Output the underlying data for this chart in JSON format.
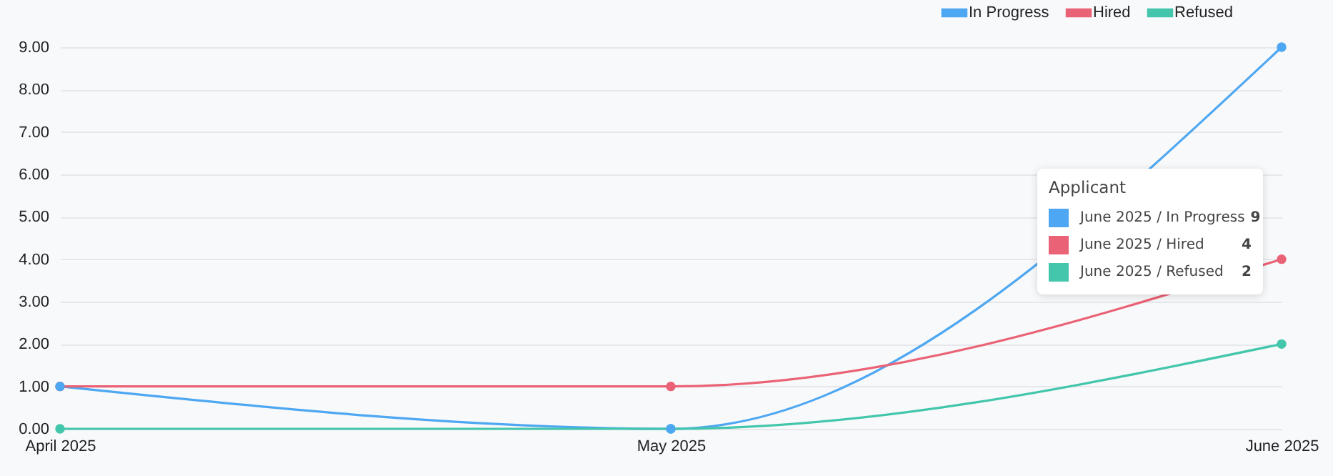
{
  "chart_data": {
    "type": "line",
    "categories": [
      "April 2025",
      "May 2025",
      "June 2025"
    ],
    "series": [
      {
        "name": "In Progress",
        "color": "#4ea7f2",
        "values": [
          1,
          0,
          9
        ]
      },
      {
        "name": "Hired",
        "color": "#ea6275",
        "values": [
          1,
          1,
          4
        ]
      },
      {
        "name": "Refused",
        "color": "#43c6ac",
        "values": [
          0,
          0,
          2
        ]
      }
    ],
    "ylim": [
      0,
      9
    ],
    "yticks": [
      {
        "value": 0,
        "label": "0.00"
      },
      {
        "value": 1,
        "label": "1.00"
      },
      {
        "value": 2,
        "label": "2.00"
      },
      {
        "value": 3,
        "label": "3.00"
      },
      {
        "value": 4,
        "label": "4.00"
      },
      {
        "value": 5,
        "label": "5.00"
      },
      {
        "value": 6,
        "label": "6.00"
      },
      {
        "value": 7,
        "label": "7.00"
      },
      {
        "value": 8,
        "label": "8.00"
      },
      {
        "value": 9,
        "label": "9.00"
      }
    ],
    "grid": "y",
    "legend": "top right",
    "marker": "circle",
    "annotations": [
      "Applicant",
      "June 2025 / In Progress",
      "9",
      "June 2025 / Hired",
      "4",
      "June 2025 / Refused",
      "2"
    ]
  }
}
